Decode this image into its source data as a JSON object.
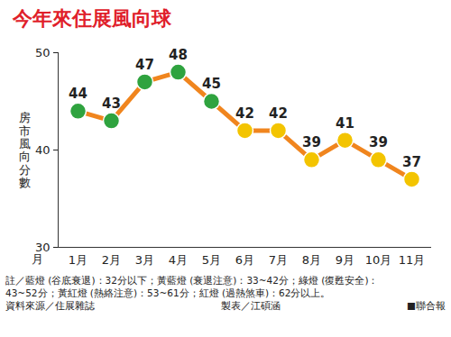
{
  "chart_data": {
    "type": "line",
    "title": "今年來住展風向球",
    "x_label": "月",
    "y_label": "房市風向分數",
    "categories": [
      "1月",
      "2月",
      "3月",
      "4月",
      "5月",
      "6月",
      "7月",
      "8月",
      "9月",
      "10月",
      "11月"
    ],
    "values": [
      44,
      43,
      47,
      48,
      45,
      42,
      42,
      39,
      41,
      39,
      37
    ],
    "color": "#f0851e",
    "colors": [
      "#2fa33f",
      "#2fa33f",
      "#2fa33f",
      "#2fa33f",
      "#2fa33f",
      "#f3c400",
      "#f3c400",
      "#f3c400",
      "#f3c400",
      "#f3c400",
      "#f3c400"
    ],
    "marker": "circle",
    "ylim": [
      30,
      50
    ],
    "yticks": [
      30,
      40,
      50
    ],
    "grid": false,
    "data_labels": true,
    "notes": [
      "註／藍燈 (谷底衰退)：32分以下；黃藍燈 (衰退注意)：33~42分；綠燈 (復甦安全)：",
      "43~52分；黃紅燈 (熱絡注意)：53~61分；紅燈 (過熱煞車)：62分以上。"
    ],
    "source": [
      "資料來源／住展雜誌",
      "製表／江碩涵",
      "■聯合報"
    ]
  }
}
